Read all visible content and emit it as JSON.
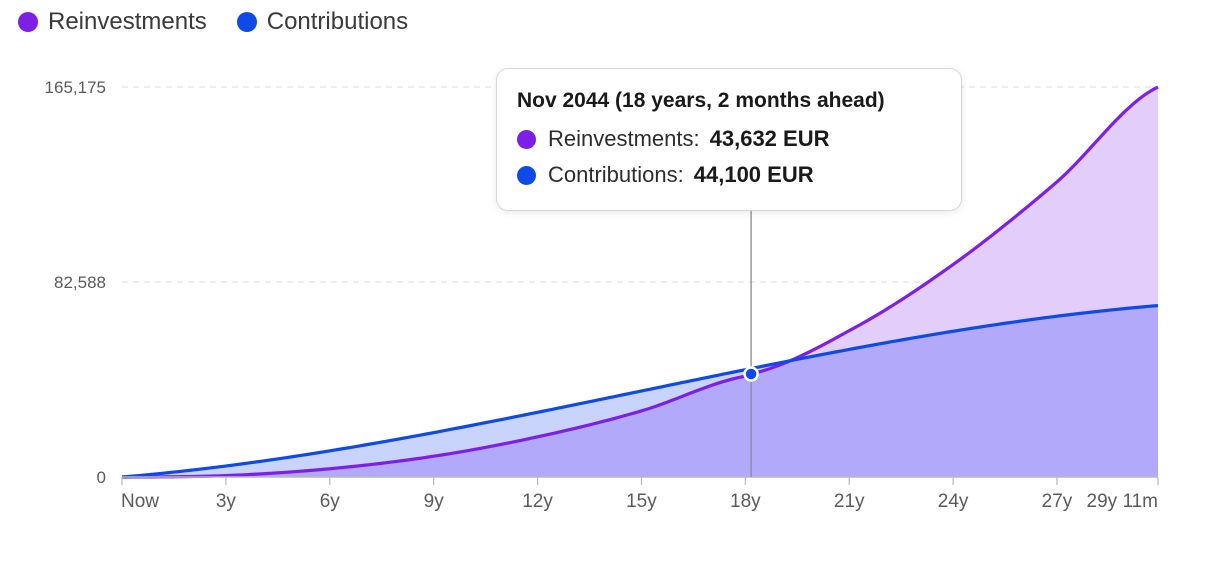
{
  "colors": {
    "reinvestments": "#7e1fe8",
    "contributions": "#0f4ae6",
    "reinvestments_fill": "#e2cdfb",
    "contributions_fill": "#c8d4fb",
    "overlap_fill": "#b2a9fb"
  },
  "legend": [
    {
      "label": "Reinvestments",
      "color": "#7e1fe8"
    },
    {
      "label": "Contributions",
      "color": "#0f4ae6"
    }
  ],
  "tooltip": {
    "title": "Nov 2044 (18 years, 2 months ahead)",
    "rows": [
      {
        "label": "Reinvestments:",
        "value": "43,632 EUR",
        "color": "#7e1fe8"
      },
      {
        "label": "Contributions:",
        "value": "44,100 EUR",
        "color": "#0f4ae6"
      }
    ]
  },
  "chart_data": {
    "type": "area",
    "x_unit": "years from now",
    "xlim": [
      0,
      29.9167
    ],
    "ylim": [
      0,
      165175
    ],
    "y_ticks": [
      {
        "value": 0,
        "label": "0"
      },
      {
        "value": 82588,
        "label": "82,588"
      },
      {
        "value": 165175,
        "label": "165,175"
      }
    ],
    "x_ticks": [
      {
        "value": 0,
        "label": "Now"
      },
      {
        "value": 3,
        "label": "3y"
      },
      {
        "value": 6,
        "label": "6y"
      },
      {
        "value": 9,
        "label": "9y"
      },
      {
        "value": 12,
        "label": "12y"
      },
      {
        "value": 15,
        "label": "15y"
      },
      {
        "value": 18,
        "label": "18y"
      },
      {
        "value": 21,
        "label": "21y"
      },
      {
        "value": 24,
        "label": "24y"
      },
      {
        "value": 27,
        "label": "27y"
      },
      {
        "value": 29.9167,
        "label": "29y 11m"
      }
    ],
    "grid": true,
    "legend_position": "top-left",
    "hover_x": 18.1667,
    "series": [
      {
        "name": "Reinvestments",
        "x": [
          0,
          3,
          6,
          9,
          12,
          15,
          18,
          18.1667,
          21,
          24,
          27,
          29.9167
        ],
        "y": [
          0,
          600,
          3500,
          8800,
          17000,
          28000,
          42700,
          43632,
          62000,
          90000,
          125000,
          165175
        ]
      },
      {
        "name": "Contributions",
        "x": [
          0,
          29.9167
        ],
        "y": [
          0,
          72600
        ]
      }
    ]
  }
}
